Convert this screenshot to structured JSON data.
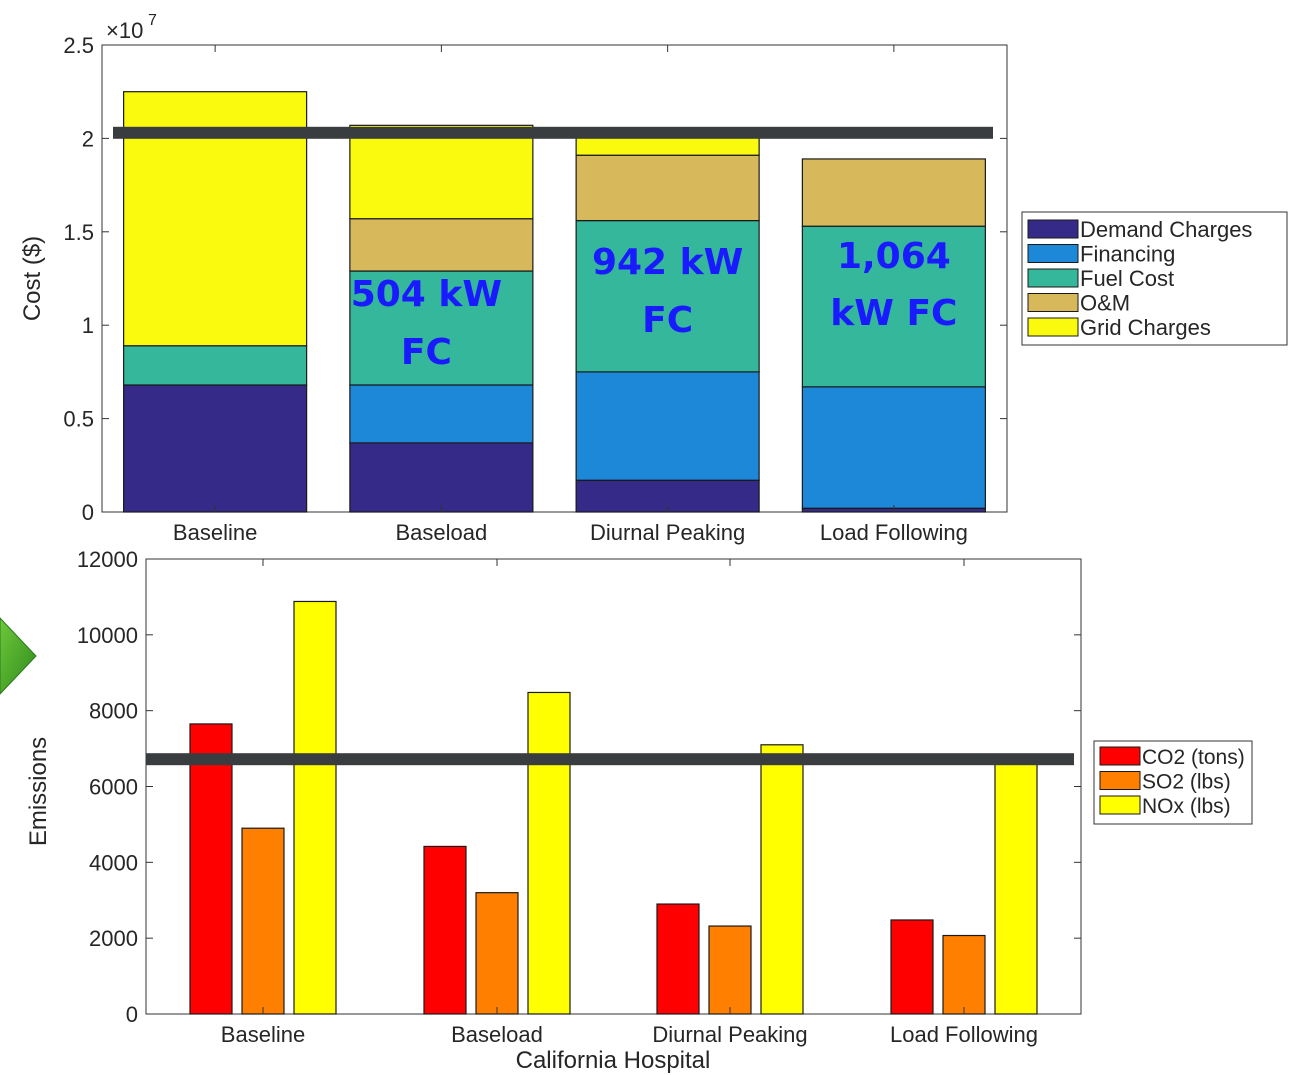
{
  "chart_data": [
    {
      "type": "bar",
      "stacked": true,
      "categories": [
        "Baseline",
        "Baseload",
        "Diurnal Peaking",
        "Load Following"
      ],
      "ylabel": "Cost ($)",
      "ylim": [
        0,
        25000000
      ],
      "yticks": [
        0,
        0.5,
        1,
        1.5,
        2,
        2.5
      ],
      "ytick_labels": [
        "0",
        "0.5",
        "1",
        "1.5",
        "2",
        "2.5"
      ],
      "exponent_label": "×10",
      "exponent_power": "7",
      "legend_position": "right",
      "series": [
        {
          "name": "Demand Charges",
          "color": "#352a87",
          "values": [
            6800000,
            3700000,
            1700000,
            200000
          ]
        },
        {
          "name": "Financing",
          "color": "#1e88d8",
          "values": [
            0,
            3100000,
            5800000,
            6500000
          ]
        },
        {
          "name": "Fuel Cost",
          "color": "#35b79c",
          "values": [
            2100000,
            6100000,
            8100000,
            8600000
          ]
        },
        {
          "name": "O&M",
          "color": "#d7b95b",
          "values": [
            0,
            2800000,
            3500000,
            3600000
          ]
        },
        {
          "name": "Grid Charges",
          "color": "#f9fa0e",
          "values": [
            13600000,
            5000000,
            1100000,
            0
          ]
        }
      ],
      "threshold": {
        "value": 20300000,
        "color": "#3a3d40"
      },
      "annotations": [
        {
          "category": "Baseload",
          "lines": [
            "504 kW",
            "FC"
          ]
        },
        {
          "category": "Diurnal Peaking",
          "lines": [
            "942 kW",
            "FC"
          ]
        },
        {
          "category": "Load Following",
          "lines": [
            "1,064",
            "kW FC"
          ]
        }
      ]
    },
    {
      "type": "bar",
      "categories": [
        "Baseline",
        "Baseload",
        "Diurnal Peaking",
        "Load Following"
      ],
      "xlabel": "California Hospital",
      "ylabel": "Emissions",
      "ylim": [
        0,
        12000
      ],
      "yticks": [
        0,
        2000,
        4000,
        6000,
        8000,
        10000,
        12000
      ],
      "legend_position": "right",
      "series": [
        {
          "name": "CO2 (tons)",
          "color": "#ff0000",
          "values": [
            7650,
            4420,
            2900,
            2480
          ]
        },
        {
          "name": "SO2 (lbs)",
          "color": "#ff8000",
          "values": [
            4900,
            3200,
            2320,
            2070
          ]
        },
        {
          "name": "NOx (lbs)",
          "color": "#ffff00",
          "values": [
            10880,
            8480,
            7100,
            6650
          ]
        }
      ],
      "threshold": {
        "value": 6720,
        "color": "#3a3d40"
      }
    }
  ]
}
